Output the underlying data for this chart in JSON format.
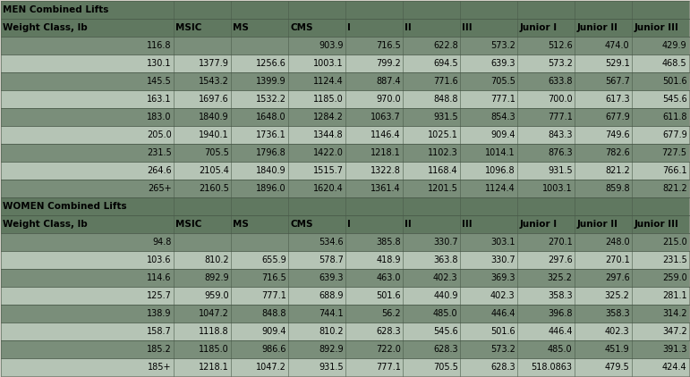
{
  "men_header": "MEN Combined Lifts",
  "women_header": "WOMEN Combined Lifts",
  "col_headers": [
    "Weight Class, lb",
    "MSIC",
    "MS",
    "CMS",
    "I",
    "II",
    "III",
    "Junior I",
    "Junior II",
    "Junior III"
  ],
  "men_rows": [
    [
      "116.8",
      "",
      "",
      "903.9",
      "716.5",
      "622.8",
      "573.2",
      "512.6",
      "474.0",
      "429.9"
    ],
    [
      "130.1",
      "1377.9",
      "1256.6",
      "1003.1",
      "799.2",
      "694.5",
      "639.3",
      "573.2",
      "529.1",
      "468.5"
    ],
    [
      "145.5",
      "1543.2",
      "1399.9",
      "1124.4",
      "887.4",
      "771.6",
      "705.5",
      "633.8",
      "567.7",
      "501.6"
    ],
    [
      "163.1",
      "1697.6",
      "1532.2",
      "1185.0",
      "970.0",
      "848.8",
      "777.1",
      "700.0",
      "617.3",
      "545.6"
    ],
    [
      "183.0",
      "1840.9",
      "1648.0",
      "1284.2",
      "1063.7",
      "931.5",
      "854.3",
      "777.1",
      "677.9",
      "611.8"
    ],
    [
      "205.0",
      "1940.1",
      "1736.1",
      "1344.8",
      "1146.4",
      "1025.1",
      "909.4",
      "843.3",
      "749.6",
      "677.9"
    ],
    [
      "231.5",
      "705.5",
      "1796.8",
      "1422.0",
      "1218.1",
      "1102.3",
      "1014.1",
      "876.3",
      "782.6",
      "727.5"
    ],
    [
      "264.6",
      "2105.4",
      "1840.9",
      "1515.7",
      "1322.8",
      "1168.4",
      "1096.8",
      "931.5",
      "821.2",
      "766.1"
    ],
    [
      "265+",
      "2160.5",
      "1896.0",
      "1620.4",
      "1361.4",
      "1201.5",
      "1124.4",
      "1003.1",
      "859.8",
      "821.2"
    ]
  ],
  "women_rows": [
    [
      "94.8",
      "",
      "",
      "534.6",
      "385.8",
      "330.7",
      "303.1",
      "270.1",
      "248.0",
      "215.0"
    ],
    [
      "103.6",
      "810.2",
      "655.9",
      "578.7",
      "418.9",
      "363.8",
      "330.7",
      "297.6",
      "270.1",
      "231.5"
    ],
    [
      "114.6",
      "892.9",
      "716.5",
      "639.3",
      "463.0",
      "402.3",
      "369.3",
      "325.2",
      "297.6",
      "259.0"
    ],
    [
      "125.7",
      "959.0",
      "777.1",
      "688.9",
      "501.6",
      "440.9",
      "402.3",
      "358.3",
      "325.2",
      "281.1"
    ],
    [
      "138.9",
      "1047.2",
      "848.8",
      "744.1",
      "56.2",
      "485.0",
      "446.4",
      "396.8",
      "358.3",
      "314.2"
    ],
    [
      "158.7",
      "1118.8",
      "909.4",
      "810.2",
      "628.3",
      "545.6",
      "501.6",
      "446.4",
      "402.3",
      "347.2"
    ],
    [
      "185.2",
      "1185.0",
      "986.6",
      "892.9",
      "722.0",
      "628.3",
      "573.2",
      "485.0",
      "451.9",
      "391.3"
    ],
    [
      "185+",
      "1218.1",
      "1047.2",
      "931.5",
      "777.1",
      "705.5",
      "628.3",
      "518.0863",
      "479.5",
      "424.4"
    ]
  ],
  "bg_color": "#d4d0c8",
  "row_bg_light": "#c8cec8",
  "row_bg_dark": "#788878",
  "header_section_bg": "#607060",
  "col_header_bg": "#607060",
  "border_color": "#505850",
  "text_color": "#000000",
  "header_text_color": "#000000",
  "font_size": 7.0,
  "header_font_size": 7.5,
  "fig_width": 7.71,
  "fig_height": 4.22,
  "dpi": 100
}
